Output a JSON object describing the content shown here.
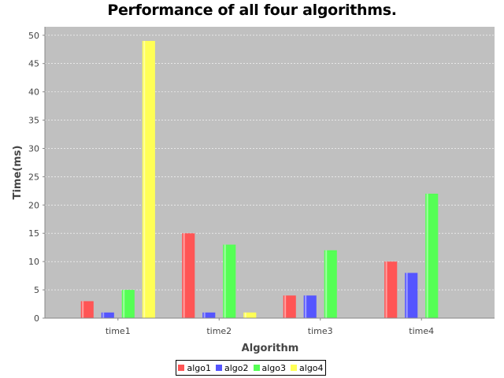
{
  "chart_data": {
    "type": "bar",
    "title": "Performance of all four algorithms.",
    "xlabel": "Algorithm",
    "ylabel": "Time(ms)",
    "categories": [
      "time1",
      "time2",
      "time3",
      "time4"
    ],
    "ylim": [
      0,
      51.5
    ],
    "yticks": [
      0,
      5,
      10,
      15,
      20,
      25,
      30,
      35,
      40,
      45,
      50
    ],
    "grid": true,
    "legend_position": "bottom",
    "plot_background": "#c0c0c0",
    "series": [
      {
        "name": "algo1",
        "color": "#ff5555",
        "values": [
          3,
          15,
          4,
          10
        ]
      },
      {
        "name": "algo2",
        "color": "#5555ff",
        "values": [
          1,
          1,
          4,
          8
        ]
      },
      {
        "name": "algo3",
        "color": "#55ff55",
        "values": [
          5,
          13,
          12,
          22
        ]
      },
      {
        "name": "algo4",
        "color": "#ffff55",
        "values": [
          49,
          1,
          0,
          0
        ]
      }
    ]
  }
}
